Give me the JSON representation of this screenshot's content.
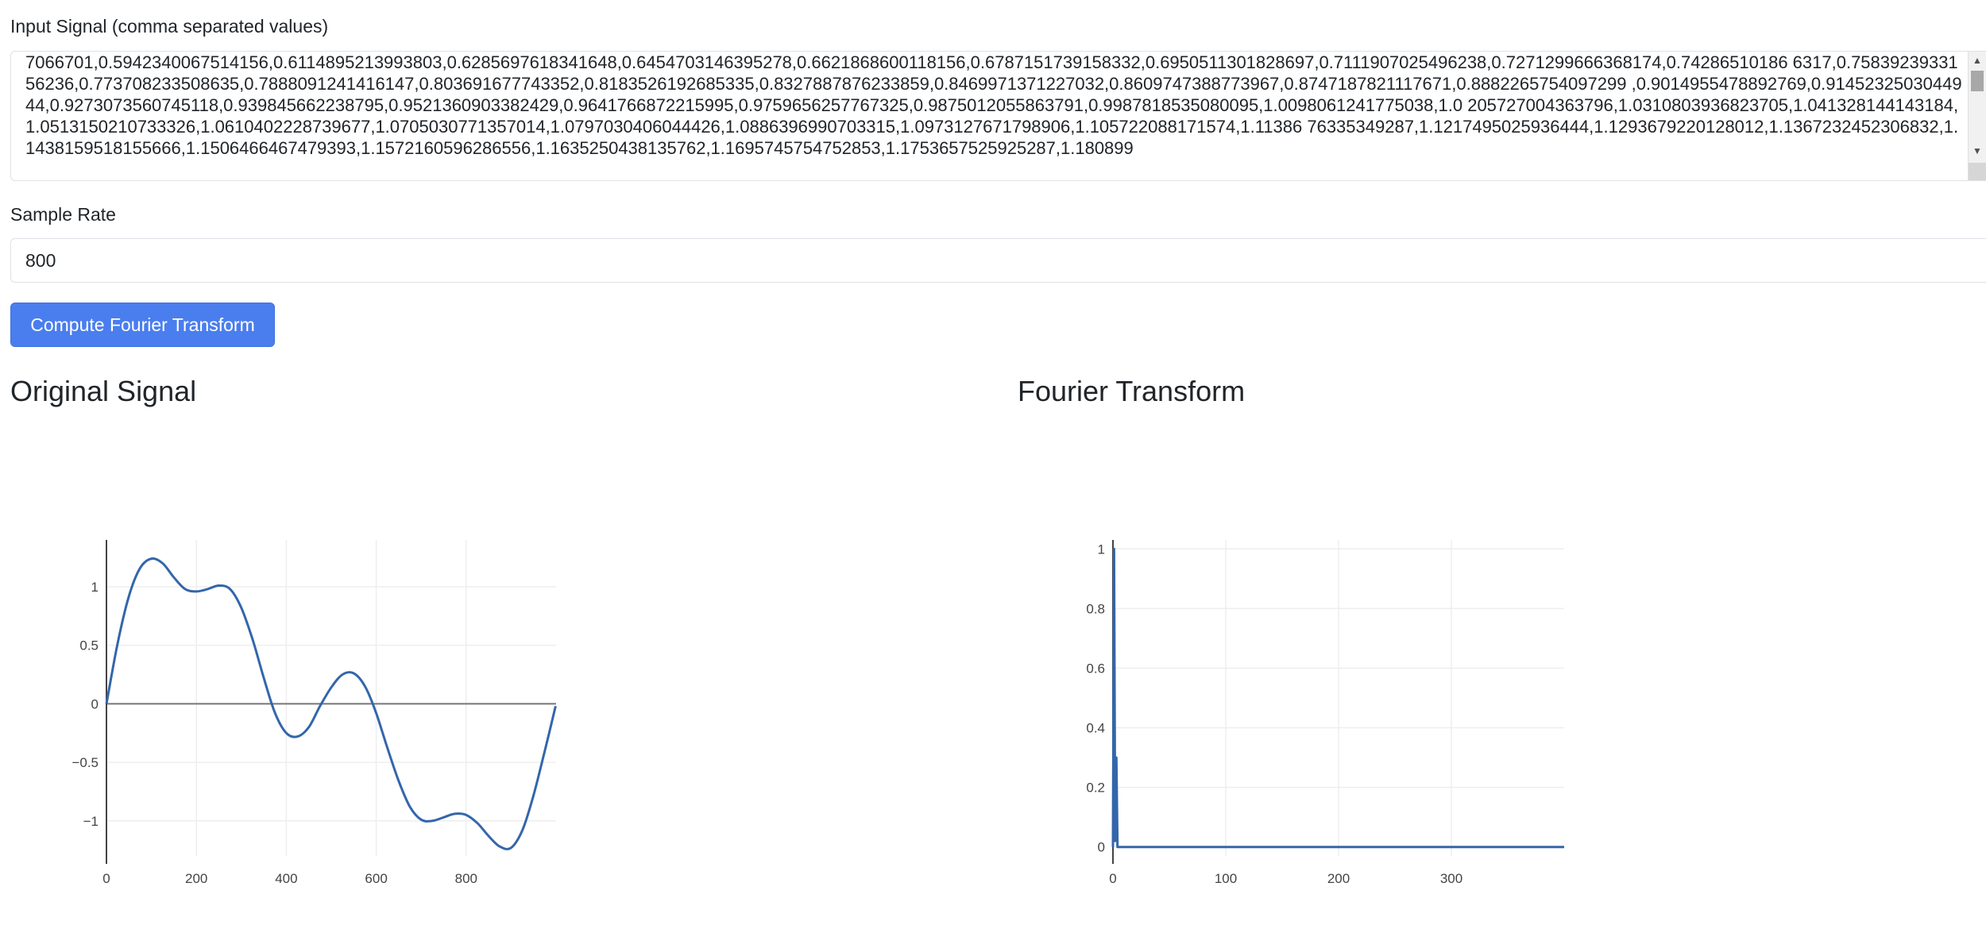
{
  "signal_input": {
    "label": "Input Signal (comma separated values)",
    "value": "7066701,0.5942340067514156,0.6114895213993803,0.6285697618341648,0.6454703146395278,0.6621868600118156,0.6787151739158332,0.6950511301828697,0.7111907025496238,0.7271299666368174,0.74286510186 6317,0.7583923933156236,0.773708233508635,0.7888091241416147,0.803691677743352,0.8183526192685335,0.8327887876233859,0.8469971371227032,0.8609747388773967,0.8747187821117671,0.8882265754097299 ,0.9014955478892769,0.9145232503044944,0.9273073560745118,0.939845662238795,0.9521360903382429,0.9641766872215995,0.9759656257767325,0.9875012055863791,0.9987818535080095,1.0098061241775038,1.0 205727004363796,1.0310803936823705,1.041328144143184,1.0513150210733326,1.0610402228739677,1.0705030771357014,1.0797030406044426,1.0886396990703315,1.0973127671798906,1.105722088171574,1.11386 76335349287,1.1217495025936444,1.1293679220128012,1.1367232452306832,1.1438159518155666,1.1506466467479393,1.1572160596286556,1.1635250438135762,1.1695745754752853,1.1753657525925287,1.180899"
  },
  "sample_rate": {
    "label": "Sample Rate",
    "value": "800"
  },
  "compute_button": {
    "label": "Compute Fourier Transform"
  },
  "charts": {
    "original_title": "Original Signal",
    "fourier_title": "Fourier Transform"
  },
  "chart_data": [
    {
      "type": "line",
      "title": "Original Signal",
      "color": "#3366aa",
      "xlim": [
        0,
        1000
      ],
      "ylim": [
        -1.3,
        1.4
      ],
      "x_ticks": [
        0,
        200,
        400,
        600,
        800
      ],
      "x_tick_labels": [
        "0",
        "200",
        "400",
        "600",
        "800"
      ],
      "y_ticks": [
        -1,
        -0.5,
        0,
        0.5,
        1
      ],
      "y_tick_labels": [
        "−1",
        "−0.5",
        "0",
        "0.5",
        "1"
      ],
      "x": [
        0,
        25,
        50,
        75,
        100,
        125,
        150,
        175,
        200,
        225,
        250,
        275,
        300,
        325,
        350,
        375,
        400,
        425,
        450,
        475,
        500,
        525,
        550,
        575,
        600,
        625,
        650,
        675,
        700,
        725,
        750,
        775,
        800,
        825,
        850,
        875,
        900,
        925,
        950,
        975,
        999
      ],
      "y": [
        0,
        0.52,
        0.92,
        1.16,
        1.24,
        1.2,
        1.08,
        0.98,
        0.96,
        0.98,
        1.01,
        0.98,
        0.82,
        0.55,
        0.22,
        -0.08,
        -0.25,
        -0.28,
        -0.2,
        -0.02,
        0.14,
        0.25,
        0.26,
        0.15,
        -0.08,
        -0.38,
        -0.66,
        -0.88,
        -0.99,
        -1.0,
        -0.97,
        -0.94,
        -0.95,
        -1.02,
        -1.13,
        -1.22,
        -1.23,
        -1.08,
        -0.78,
        -0.4,
        -0.02
      ]
    },
    {
      "type": "line",
      "title": "Fourier Transform",
      "color": "#3366aa",
      "xlim": [
        0,
        400
      ],
      "ylim": [
        -0.03,
        1.03
      ],
      "x_ticks": [
        0,
        100,
        200,
        300
      ],
      "x_tick_labels": [
        "0",
        "100",
        "200",
        "300"
      ],
      "y_ticks": [
        0,
        0.2,
        0.4,
        0.6,
        0.8,
        1
      ],
      "y_tick_labels": [
        "0",
        "0.2",
        "0.4",
        "0.6",
        "0.8",
        "1"
      ],
      "x": [
        0,
        1,
        2,
        3,
        4,
        5,
        6,
        400
      ],
      "y": [
        0,
        1.0,
        0.02,
        0.3,
        0.0,
        0.0,
        0.0,
        0.0
      ]
    }
  ]
}
